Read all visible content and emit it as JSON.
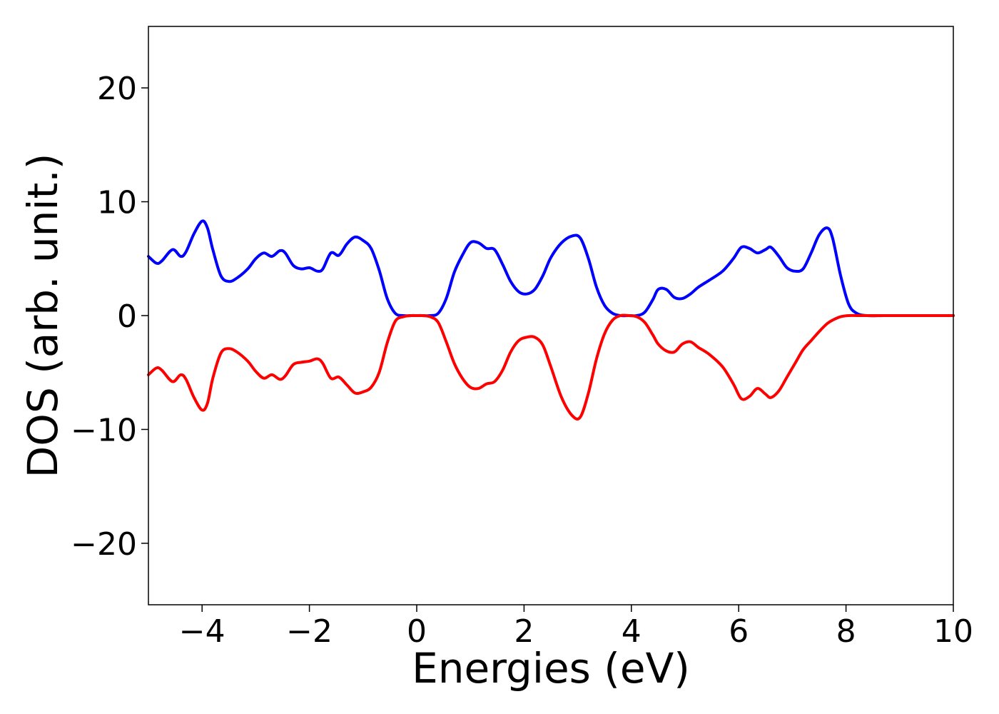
{
  "chart_data": {
    "type": "line",
    "title": "",
    "xlabel": "Energies (eV)",
    "ylabel": "DOS (arb. unit.)",
    "xlim": [
      -5,
      10
    ],
    "ylim": [
      -25.4,
      25.4
    ],
    "xticks": [
      -4,
      -2,
      0,
      2,
      4,
      6,
      8,
      10
    ],
    "xtick_labels": [
      "−4",
      "−2",
      "0",
      "2",
      "4",
      "6",
      "8",
      "10"
    ],
    "yticks": [
      -20,
      -10,
      0,
      10,
      20
    ],
    "ytick_labels": [
      "−20",
      "−10",
      "0",
      "10",
      "20"
    ],
    "grid": false,
    "legend": "none",
    "series": [
      {
        "color": "#0000ff",
        "x": [
          -5.0,
          -4.85,
          -4.75,
          -4.55,
          -4.4,
          -4.3,
          -4.15,
          -4.0,
          -3.9,
          -3.8,
          -3.65,
          -3.5,
          -3.35,
          -3.15,
          -3.0,
          -2.85,
          -2.7,
          -2.55,
          -2.45,
          -2.3,
          -2.15,
          -2.0,
          -1.85,
          -1.75,
          -1.6,
          -1.45,
          -1.3,
          -1.15,
          -1.0,
          -0.85,
          -0.7,
          -0.55,
          -0.4,
          -0.25,
          -0.1,
          0.0,
          0.1,
          0.25,
          0.4,
          0.55,
          0.7,
          0.85,
          1.0,
          1.15,
          1.3,
          1.45,
          1.6,
          1.75,
          1.9,
          2.05,
          2.2,
          2.35,
          2.5,
          2.7,
          2.9,
          3.05,
          3.2,
          3.35,
          3.5,
          3.65,
          3.8,
          3.95,
          4.1,
          4.25,
          4.4,
          4.5,
          4.65,
          4.8,
          4.95,
          5.1,
          5.25,
          5.45,
          5.7,
          5.9,
          6.05,
          6.2,
          6.35,
          6.5,
          6.6,
          6.75,
          6.9,
          7.05,
          7.2,
          7.35,
          7.5,
          7.65,
          7.75,
          7.9,
          8.05,
          8.2,
          8.4,
          8.7,
          9.0,
          9.5,
          10.0
        ],
        "y": [
          5.2,
          4.6,
          4.8,
          5.8,
          5.2,
          5.6,
          7.2,
          8.3,
          7.7,
          5.8,
          3.5,
          3.0,
          3.3,
          4.1,
          5.0,
          5.5,
          5.2,
          5.7,
          5.5,
          4.4,
          4.1,
          4.2,
          3.9,
          4.1,
          5.5,
          5.3,
          6.3,
          6.9,
          6.6,
          5.9,
          4.0,
          1.5,
          0.2,
          0.0,
          0.0,
          0.0,
          0.0,
          0.0,
          0.2,
          1.5,
          3.8,
          5.3,
          6.4,
          6.4,
          5.9,
          5.8,
          4.5,
          3.0,
          2.1,
          1.9,
          2.3,
          3.5,
          5.1,
          6.4,
          7.0,
          6.8,
          5.0,
          2.5,
          0.9,
          0.2,
          0.0,
          0.0,
          0.0,
          0.3,
          1.4,
          2.3,
          2.3,
          1.6,
          1.5,
          1.9,
          2.5,
          3.1,
          3.9,
          5.0,
          6.0,
          5.9,
          5.5,
          5.8,
          6.0,
          5.2,
          4.2,
          3.9,
          4.1,
          5.5,
          7.1,
          7.7,
          6.8,
          3.5,
          1.0,
          0.2,
          0.0,
          0.0,
          0.0,
          0.0,
          0.0
        ]
      },
      {
        "color": "#ff0000",
        "x": [
          -5.0,
          -4.85,
          -4.75,
          -4.55,
          -4.4,
          -4.3,
          -4.15,
          -4.0,
          -3.9,
          -3.8,
          -3.65,
          -3.5,
          -3.35,
          -3.15,
          -3.0,
          -2.85,
          -2.7,
          -2.55,
          -2.45,
          -2.3,
          -2.15,
          -2.0,
          -1.85,
          -1.75,
          -1.6,
          -1.45,
          -1.3,
          -1.15,
          -1.0,
          -0.85,
          -0.7,
          -0.55,
          -0.4,
          -0.25,
          -0.1,
          0.0,
          0.1,
          0.25,
          0.4,
          0.55,
          0.7,
          0.85,
          1.0,
          1.15,
          1.3,
          1.45,
          1.6,
          1.75,
          1.9,
          2.05,
          2.2,
          2.35,
          2.5,
          2.7,
          2.9,
          3.05,
          3.2,
          3.35,
          3.5,
          3.65,
          3.8,
          3.95,
          4.1,
          4.25,
          4.4,
          4.5,
          4.65,
          4.8,
          4.95,
          5.1,
          5.25,
          5.45,
          5.7,
          5.9,
          6.05,
          6.2,
          6.35,
          6.5,
          6.6,
          6.75,
          6.9,
          7.05,
          7.2,
          7.35,
          7.5,
          7.65,
          7.75,
          7.9,
          8.05,
          8.2,
          8.4,
          8.7,
          9.0,
          9.5,
          10.0
        ],
        "y": [
          -5.2,
          -4.6,
          -4.8,
          -5.8,
          -5.2,
          -5.6,
          -7.2,
          -8.3,
          -7.7,
          -5.5,
          -3.3,
          -2.9,
          -3.2,
          -4.0,
          -4.9,
          -5.5,
          -5.2,
          -5.6,
          -5.3,
          -4.3,
          -4.1,
          -4.0,
          -3.8,
          -4.2,
          -5.5,
          -5.4,
          -6.1,
          -6.8,
          -6.7,
          -6.3,
          -5.0,
          -2.4,
          -0.5,
          -0.1,
          0.0,
          0.0,
          0.0,
          -0.1,
          -0.6,
          -2.3,
          -4.2,
          -5.5,
          -6.3,
          -6.4,
          -6.0,
          -5.8,
          -4.8,
          -3.2,
          -2.2,
          -1.9,
          -1.9,
          -2.6,
          -4.5,
          -7.2,
          -8.8,
          -8.9,
          -6.8,
          -3.8,
          -1.6,
          -0.4,
          0.0,
          0.0,
          -0.1,
          -0.6,
          -1.7,
          -2.5,
          -3.1,
          -3.2,
          -2.5,
          -2.3,
          -2.8,
          -3.4,
          -4.5,
          -6.0,
          -7.3,
          -7.1,
          -6.4,
          -6.9,
          -7.2,
          -6.6,
          -5.4,
          -4.2,
          -3.0,
          -2.2,
          -1.4,
          -0.7,
          -0.4,
          -0.1,
          0.0,
          0.0,
          0.0,
          0.0,
          0.0,
          0.0,
          0.0
        ]
      }
    ]
  }
}
